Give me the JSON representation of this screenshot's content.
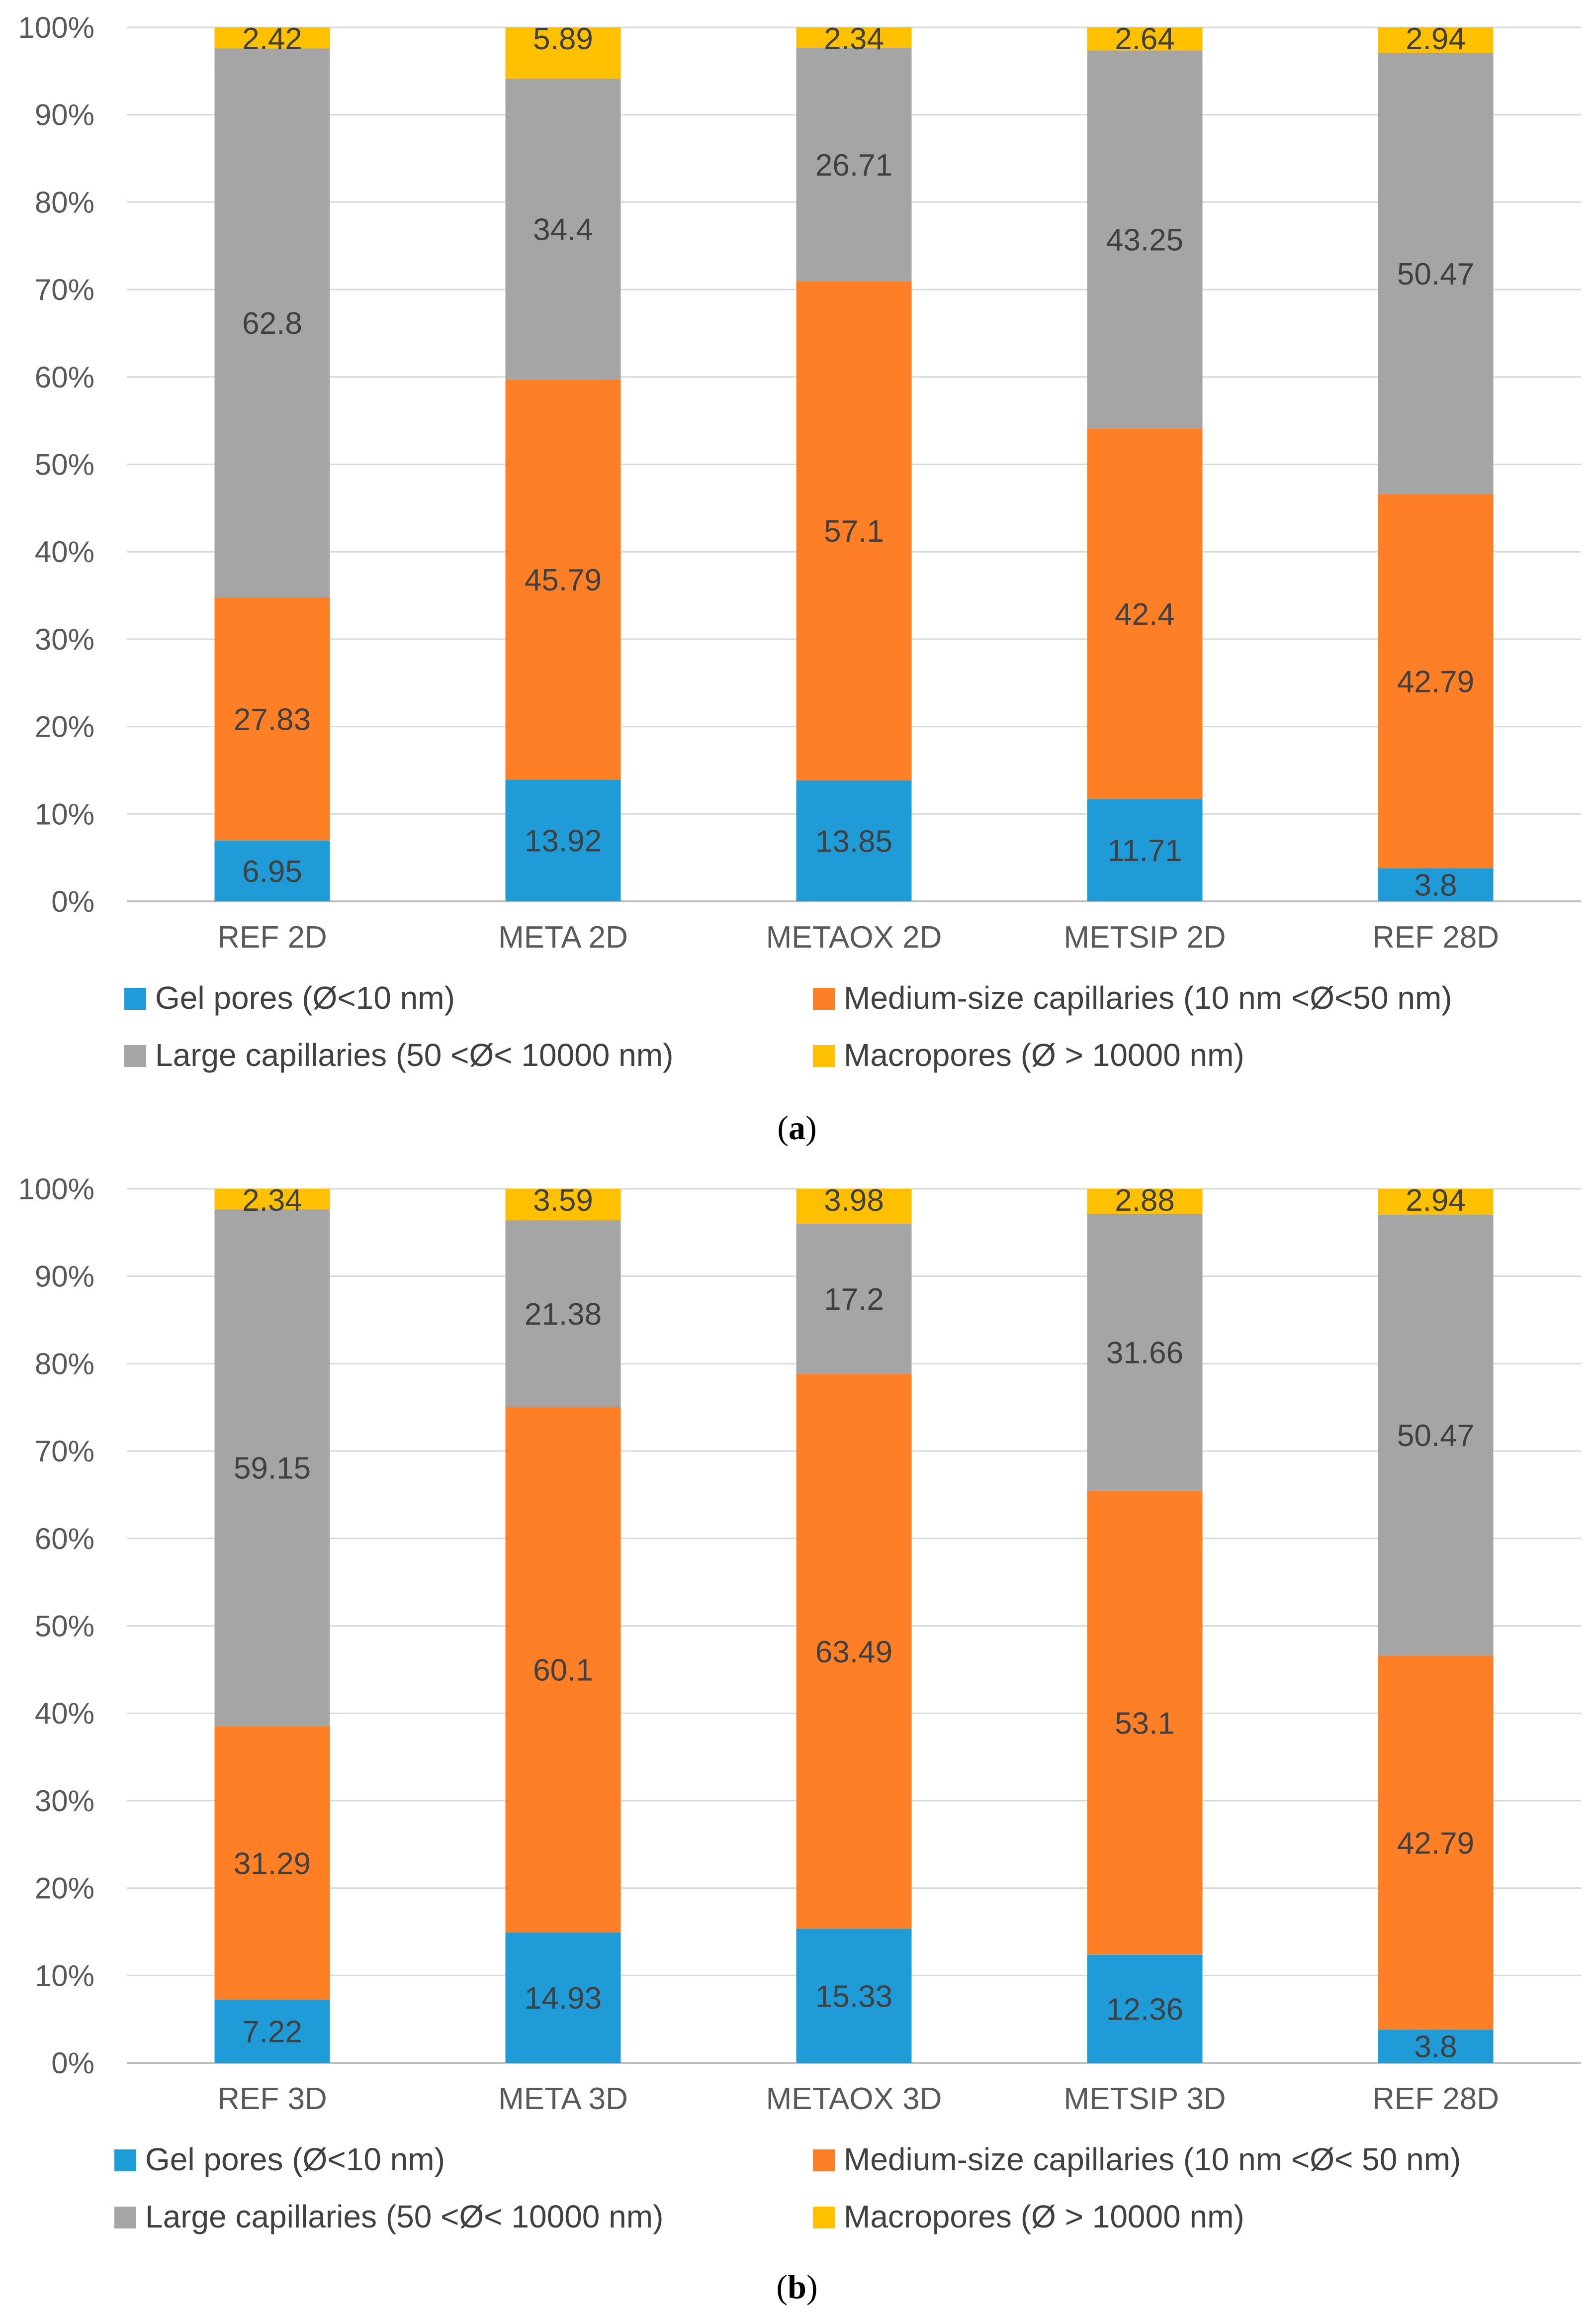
{
  "colors": {
    "gel": "#1f9bd7",
    "medium": "#ff7f27",
    "large": "#a5a5a5",
    "macro": "#ffc000",
    "grid": "#d9d9d9",
    "axis": "#bfbfbf"
  },
  "chart_data": [
    {
      "type": "bar",
      "stacked": "percent",
      "caption": {
        "open": "(",
        "letter": "a",
        "close": ")"
      },
      "categories": [
        "REF 2D",
        "META 2D",
        "METAOX 2D",
        "METSIP 2D",
        "REF 28D"
      ],
      "ylim": [
        0,
        100
      ],
      "yticks": [
        "0%",
        "10%",
        "20%",
        "30%",
        "40%",
        "50%",
        "60%",
        "70%",
        "80%",
        "90%",
        "100%"
      ],
      "series": [
        {
          "name": "Gel pores (Ø<10 nm)",
          "color": "#1f9bd7",
          "values": [
            6.95,
            13.92,
            13.85,
            11.71,
            3.8
          ],
          "labels": [
            "6.95",
            "13.92",
            "13.85",
            "11.71",
            "3.8"
          ]
        },
        {
          "name": "Medium-size capillaries (10 nm <Ø<50 nm)",
          "color": "#ff7f27",
          "values": [
            27.83,
            45.79,
            57.1,
            42.4,
            42.79
          ],
          "labels": [
            "27.83",
            "45.79",
            "57.1",
            "42.4",
            "42.79"
          ]
        },
        {
          "name": "Large capillaries (50 <Ø< 10000 nm)",
          "color": "#a5a5a5",
          "values": [
            62.8,
            34.4,
            26.71,
            43.25,
            50.47
          ],
          "labels": [
            "62.8",
            "34.4",
            "26.71",
            "43.25",
            "50.47"
          ]
        },
        {
          "name": "Macropores (Ø > 10000 nm)",
          "color": "#ffc000",
          "values": [
            2.42,
            5.89,
            2.34,
            2.64,
            2.94
          ],
          "labels": [
            "2.42",
            "5.89",
            "2.34",
            "2.64",
            "2.94"
          ]
        }
      ],
      "legend": "bottom"
    },
    {
      "type": "bar",
      "stacked": "percent",
      "caption": {
        "open": "(",
        "letter": "b",
        "close": ")"
      },
      "categories": [
        "REF 3D",
        "META 3D",
        "METAOX 3D",
        "METSIP 3D",
        "REF 28D"
      ],
      "ylim": [
        0,
        100
      ],
      "yticks": [
        "0%",
        "10%",
        "20%",
        "30%",
        "40%",
        "50%",
        "60%",
        "70%",
        "80%",
        "90%",
        "100%"
      ],
      "series": [
        {
          "name": "Gel pores (Ø<10 nm)",
          "color": "#1f9bd7",
          "values": [
            7.22,
            14.93,
            15.33,
            12.36,
            3.8
          ],
          "labels": [
            "7.22",
            "14.93",
            "15.33",
            "12.36",
            "3.8"
          ]
        },
        {
          "name": "Medium-size capillaries (10 nm <Ø< 50 nm)",
          "color": "#ff7f27",
          "values": [
            31.29,
            60.1,
            63.49,
            53.1,
            42.79
          ],
          "labels": [
            "31.29",
            "60.1",
            "63.49",
            "53.1",
            "42.79"
          ]
        },
        {
          "name": "Large capillaries (50 <Ø< 10000 nm)",
          "color": "#a5a5a5",
          "values": [
            59.15,
            21.38,
            17.2,
            31.66,
            50.47
          ],
          "labels": [
            "59.15",
            "21.38",
            "17.2",
            "31.66",
            "50.47"
          ]
        },
        {
          "name": "Macropores (Ø > 10000 nm)",
          "color": "#ffc000",
          "values": [
            2.34,
            3.59,
            3.98,
            2.88,
            2.94
          ],
          "labels": [
            "2.34",
            "3.59",
            "3.98",
            "2.88",
            "2.94"
          ]
        }
      ],
      "legend": "bottom"
    }
  ]
}
